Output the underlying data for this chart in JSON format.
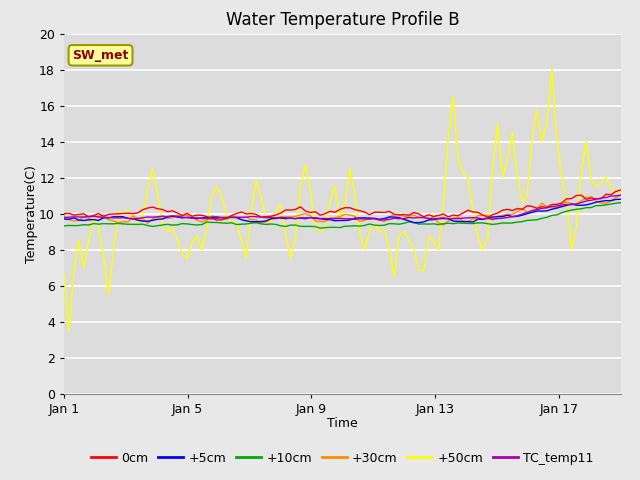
{
  "title": "Water Temperature Profile B",
  "xlabel": "Time",
  "ylabel": "Temperature(C)",
  "ylim": [
    0,
    20
  ],
  "yticks": [
    0,
    2,
    4,
    6,
    8,
    10,
    12,
    14,
    16,
    18,
    20
  ],
  "xtick_labels": [
    "Jan 1",
    "Jan 5",
    "Jan 9",
    "Jan 13",
    "Jan 17"
  ],
  "xtick_positions": [
    0,
    4,
    8,
    12,
    16
  ],
  "n_days": 19,
  "annotation_text": "SW_met",
  "annotation_color": "#8B0000",
  "annotation_bg": "#FFFF99",
  "annotation_border": "#999900",
  "fig_bg": "#E8E8E8",
  "plot_bg": "#DCDCDC",
  "grid_color": "#FFFFFF",
  "title_fontsize": 12,
  "axis_label_fontsize": 9,
  "tick_fontsize": 9,
  "legend_fontsize": 9,
  "series": {
    "0cm": {
      "color": "#FF0000",
      "lw": 1.0,
      "zorder": 5
    },
    "+5cm": {
      "color": "#0000FF",
      "lw": 1.0,
      "zorder": 4
    },
    "+10cm": {
      "color": "#00AA00",
      "lw": 1.0,
      "zorder": 3
    },
    "+30cm": {
      "color": "#FF8C00",
      "lw": 1.0,
      "zorder": 2
    },
    "+50cm": {
      "color": "#FFFF00",
      "lw": 1.0,
      "zorder": 1
    },
    "TC_temp11": {
      "color": "#AA00AA",
      "lw": 1.0,
      "zorder": 6
    }
  }
}
